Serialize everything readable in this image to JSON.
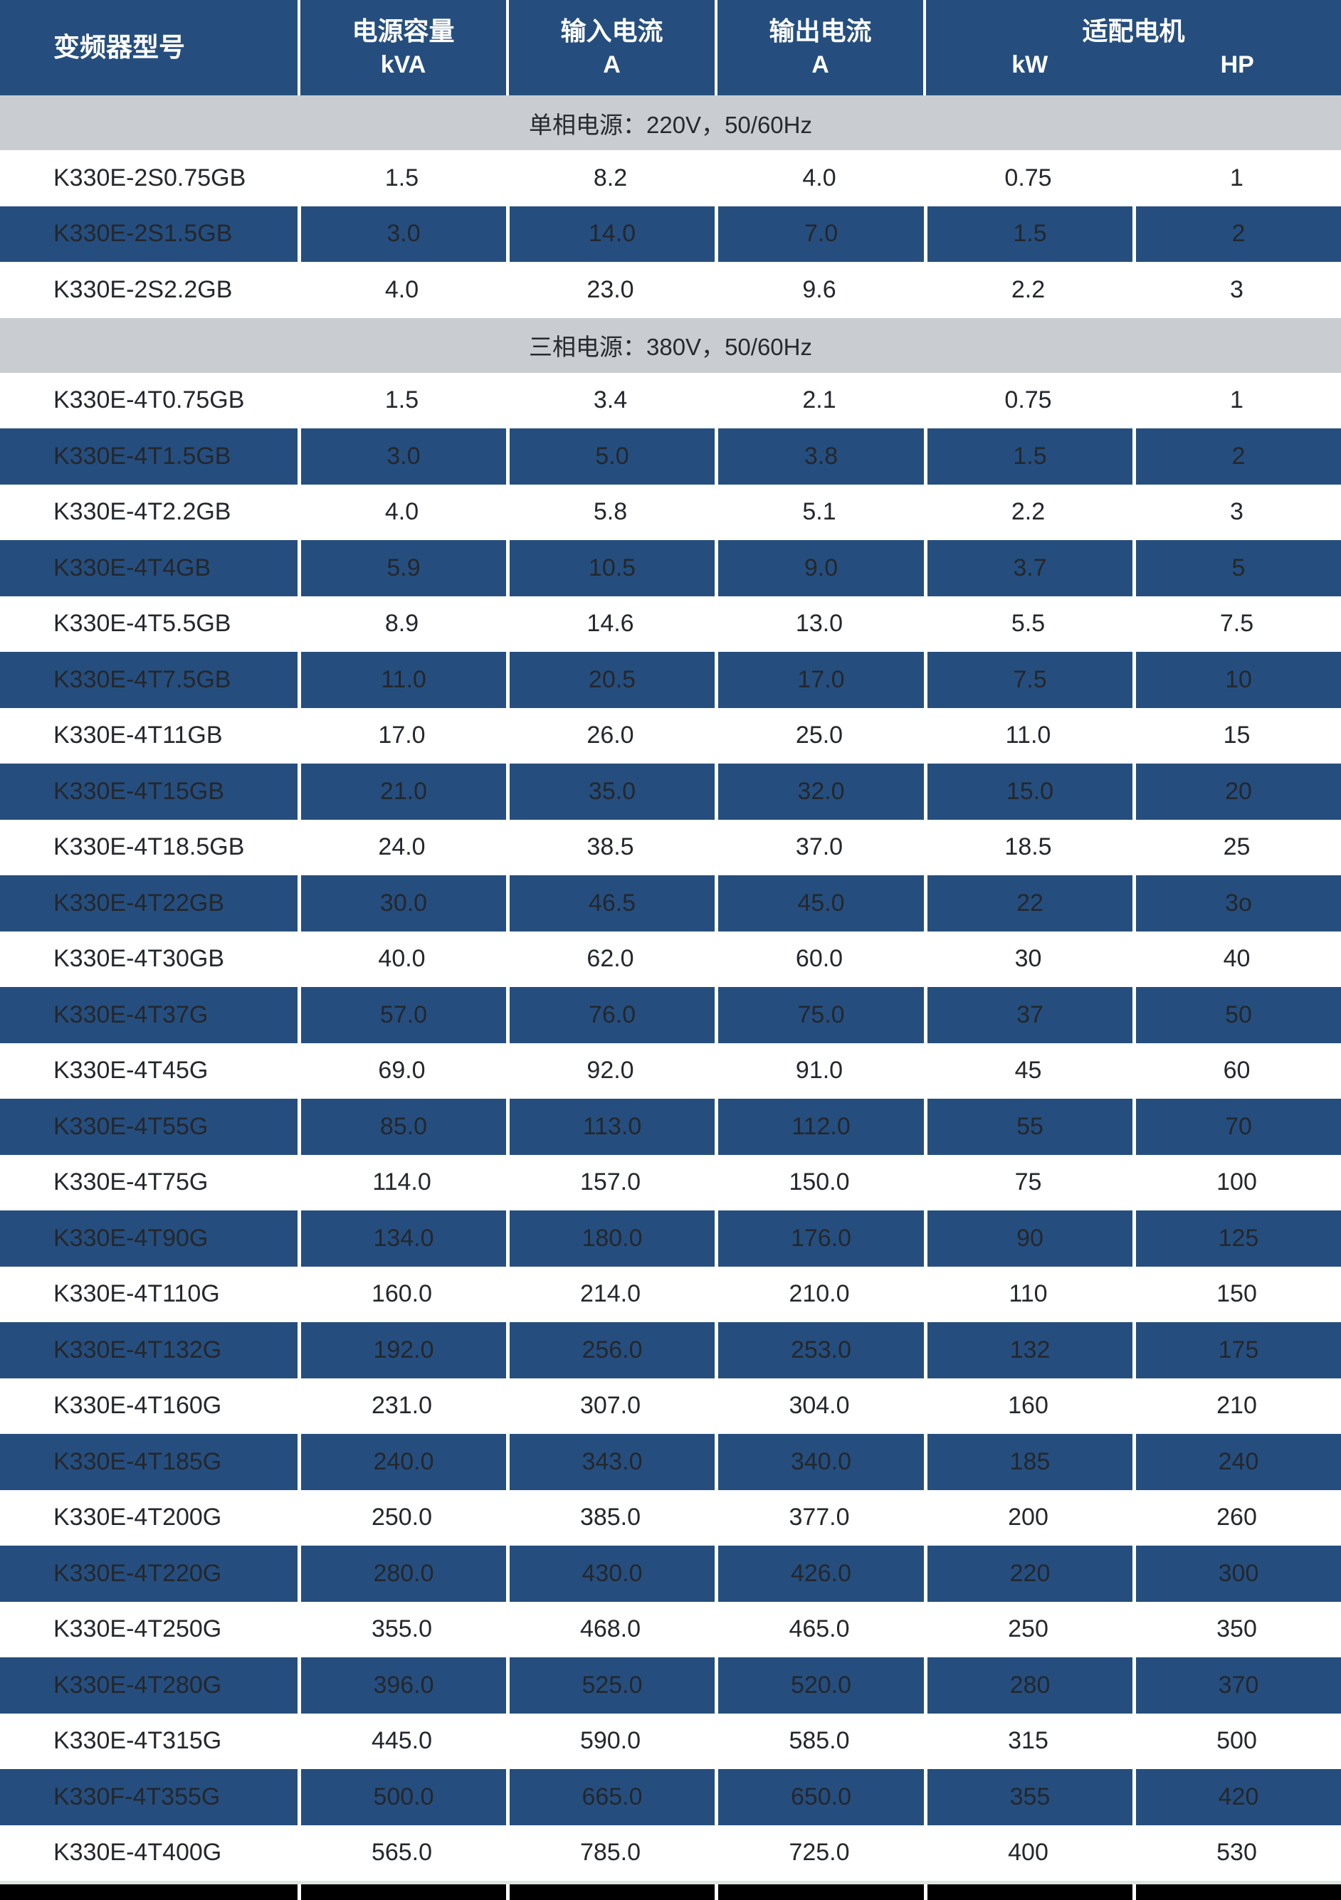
{
  "colors": {
    "header_blue": "#254E7E",
    "row_blue": "#254E7E",
    "band_gray": "#C9CDD1",
    "text_dark": "#24272C",
    "header_text": "#FFFFFF",
    "divider_white": "#FFFFFF",
    "bottom_black": "#000000",
    "pale_line": "#D9E7E0"
  },
  "header": {
    "model": "变频器型号",
    "capacity_title": "电源容量",
    "capacity_unit": "kVA",
    "input_title": "输入电流",
    "input_unit": "A",
    "output_title": "输出电流",
    "output_unit": "A",
    "motor_title": "适配电机",
    "motor_kw": "kW",
    "motor_hp": "HP"
  },
  "sections": [
    {
      "title": "单相电源：220V，50/60Hz",
      "rows": [
        {
          "model": "K330E-2S0.75GB",
          "kva": "1.5",
          "input_a": "8.2",
          "output_a": "4.0",
          "kw": "0.75",
          "hp": "1"
        },
        {
          "model": "K330E-2S1.5GB",
          "kva": "3.0",
          "input_a": "14.0",
          "output_a": "7.0",
          "kw": "1.5",
          "hp": "2"
        },
        {
          "model": "K330E-2S2.2GB",
          "kva": "4.0",
          "input_a": "23.0",
          "output_a": "9.6",
          "kw": "2.2",
          "hp": "3"
        }
      ]
    },
    {
      "title": "三相电源：380V，50/60Hz",
      "rows": [
        {
          "model": "K330E-4T0.75GB",
          "kva": "1.5",
          "input_a": "3.4",
          "output_a": "2.1",
          "kw": "0.75",
          "hp": "1"
        },
        {
          "model": "K330E-4T1.5GB",
          "kva": "3.0",
          "input_a": "5.0",
          "output_a": "3.8",
          "kw": "1.5",
          "hp": "2"
        },
        {
          "model": "K330E-4T2.2GB",
          "kva": "4.0",
          "input_a": "5.8",
          "output_a": "5.1",
          "kw": "2.2",
          "hp": "3"
        },
        {
          "model": "K330E-4T4GB",
          "kva": "5.9",
          "input_a": "10.5",
          "output_a": "9.0",
          "kw": "3.7",
          "hp": "5"
        },
        {
          "model": "K330E-4T5.5GB",
          "kva": "8.9",
          "input_a": "14.6",
          "output_a": "13.0",
          "kw": "5.5",
          "hp": "7.5"
        },
        {
          "model": "K330E-4T7.5GB",
          "kva": "11.0",
          "input_a": "20.5",
          "output_a": "17.0",
          "kw": "7.5",
          "hp": "10"
        },
        {
          "model": "K330E-4T11GB",
          "kva": "17.0",
          "input_a": "26.0",
          "output_a": "25.0",
          "kw": "11.0",
          "hp": "15"
        },
        {
          "model": "K330E-4T15GB",
          "kva": "21.0",
          "input_a": "35.0",
          "output_a": "32.0",
          "kw": "15.0",
          "hp": "20"
        },
        {
          "model": "K330E-4T18.5GB",
          "kva": "24.0",
          "input_a": "38.5",
          "output_a": "37.0",
          "kw": "18.5",
          "hp": "25"
        },
        {
          "model": "K330E-4T22GB",
          "kva": "30.0",
          "input_a": "46.5",
          "output_a": "45.0",
          "kw": "22",
          "hp": "3o"
        },
        {
          "model": "K330E-4T30GB",
          "kva": "40.0",
          "input_a": "62.0",
          "output_a": "60.0",
          "kw": "30",
          "hp": "40"
        },
        {
          "model": "K330E-4T37G",
          "kva": "57.0",
          "input_a": "76.0",
          "output_a": "75.0",
          "kw": "37",
          "hp": "50"
        },
        {
          "model": "K330E-4T45G",
          "kva": "69.0",
          "input_a": "92.0",
          "output_a": "91.0",
          "kw": "45",
          "hp": "60"
        },
        {
          "model": "K330E-4T55G",
          "kva": "85.0",
          "input_a": "113.0",
          "output_a": "112.0",
          "kw": "55",
          "hp": "70"
        },
        {
          "model": "K330E-4T75G",
          "kva": "114.0",
          "input_a": "157.0",
          "output_a": "150.0",
          "kw": "75",
          "hp": "100"
        },
        {
          "model": "K330E-4T90G",
          "kva": "134.0",
          "input_a": "180.0",
          "output_a": "176.0",
          "kw": "90",
          "hp": "125"
        },
        {
          "model": "K330E-4T110G",
          "kva": "160.0",
          "input_a": "214.0",
          "output_a": "210.0",
          "kw": "110",
          "hp": "150"
        },
        {
          "model": "K330E-4T132G",
          "kva": "192.0",
          "input_a": "256.0",
          "output_a": "253.0",
          "kw": "132",
          "hp": "175"
        },
        {
          "model": "K330E-4T160G",
          "kva": "231.0",
          "input_a": "307.0",
          "output_a": "304.0",
          "kw": "160",
          "hp": "210"
        },
        {
          "model": "K330E-4T185G",
          "kva": "240.0",
          "input_a": "343.0",
          "output_a": "340.0",
          "kw": "185",
          "hp": "240"
        },
        {
          "model": "K330E-4T200G",
          "kva": "250.0",
          "input_a": "385.0",
          "output_a": "377.0",
          "kw": "200",
          "hp": "260"
        },
        {
          "model": "K330E-4T220G",
          "kva": "280.0",
          "input_a": "430.0",
          "output_a": "426.0",
          "kw": "220",
          "hp": "300"
        },
        {
          "model": "K330E-4T250G",
          "kva": "355.0",
          "input_a": "468.0",
          "output_a": "465.0",
          "kw": "250",
          "hp": "350"
        },
        {
          "model": "K330E-4T280G",
          "kva": "396.0",
          "input_a": "525.0",
          "output_a": "520.0",
          "kw": "280",
          "hp": "370"
        },
        {
          "model": "K330E-4T315G",
          "kva": "445.0",
          "input_a": "590.0",
          "output_a": "585.0",
          "kw": "315",
          "hp": "500"
        },
        {
          "model": "K330F-4T355G",
          "kva": "500.0",
          "input_a": "665.0",
          "output_a": "650.0",
          "kw": "355",
          "hp": "420"
        },
        {
          "model": "K330E-4T400G",
          "kva": "565.0",
          "input_a": "785.0",
          "output_a": "725.0",
          "kw": "400",
          "hp": "530"
        }
      ]
    }
  ]
}
